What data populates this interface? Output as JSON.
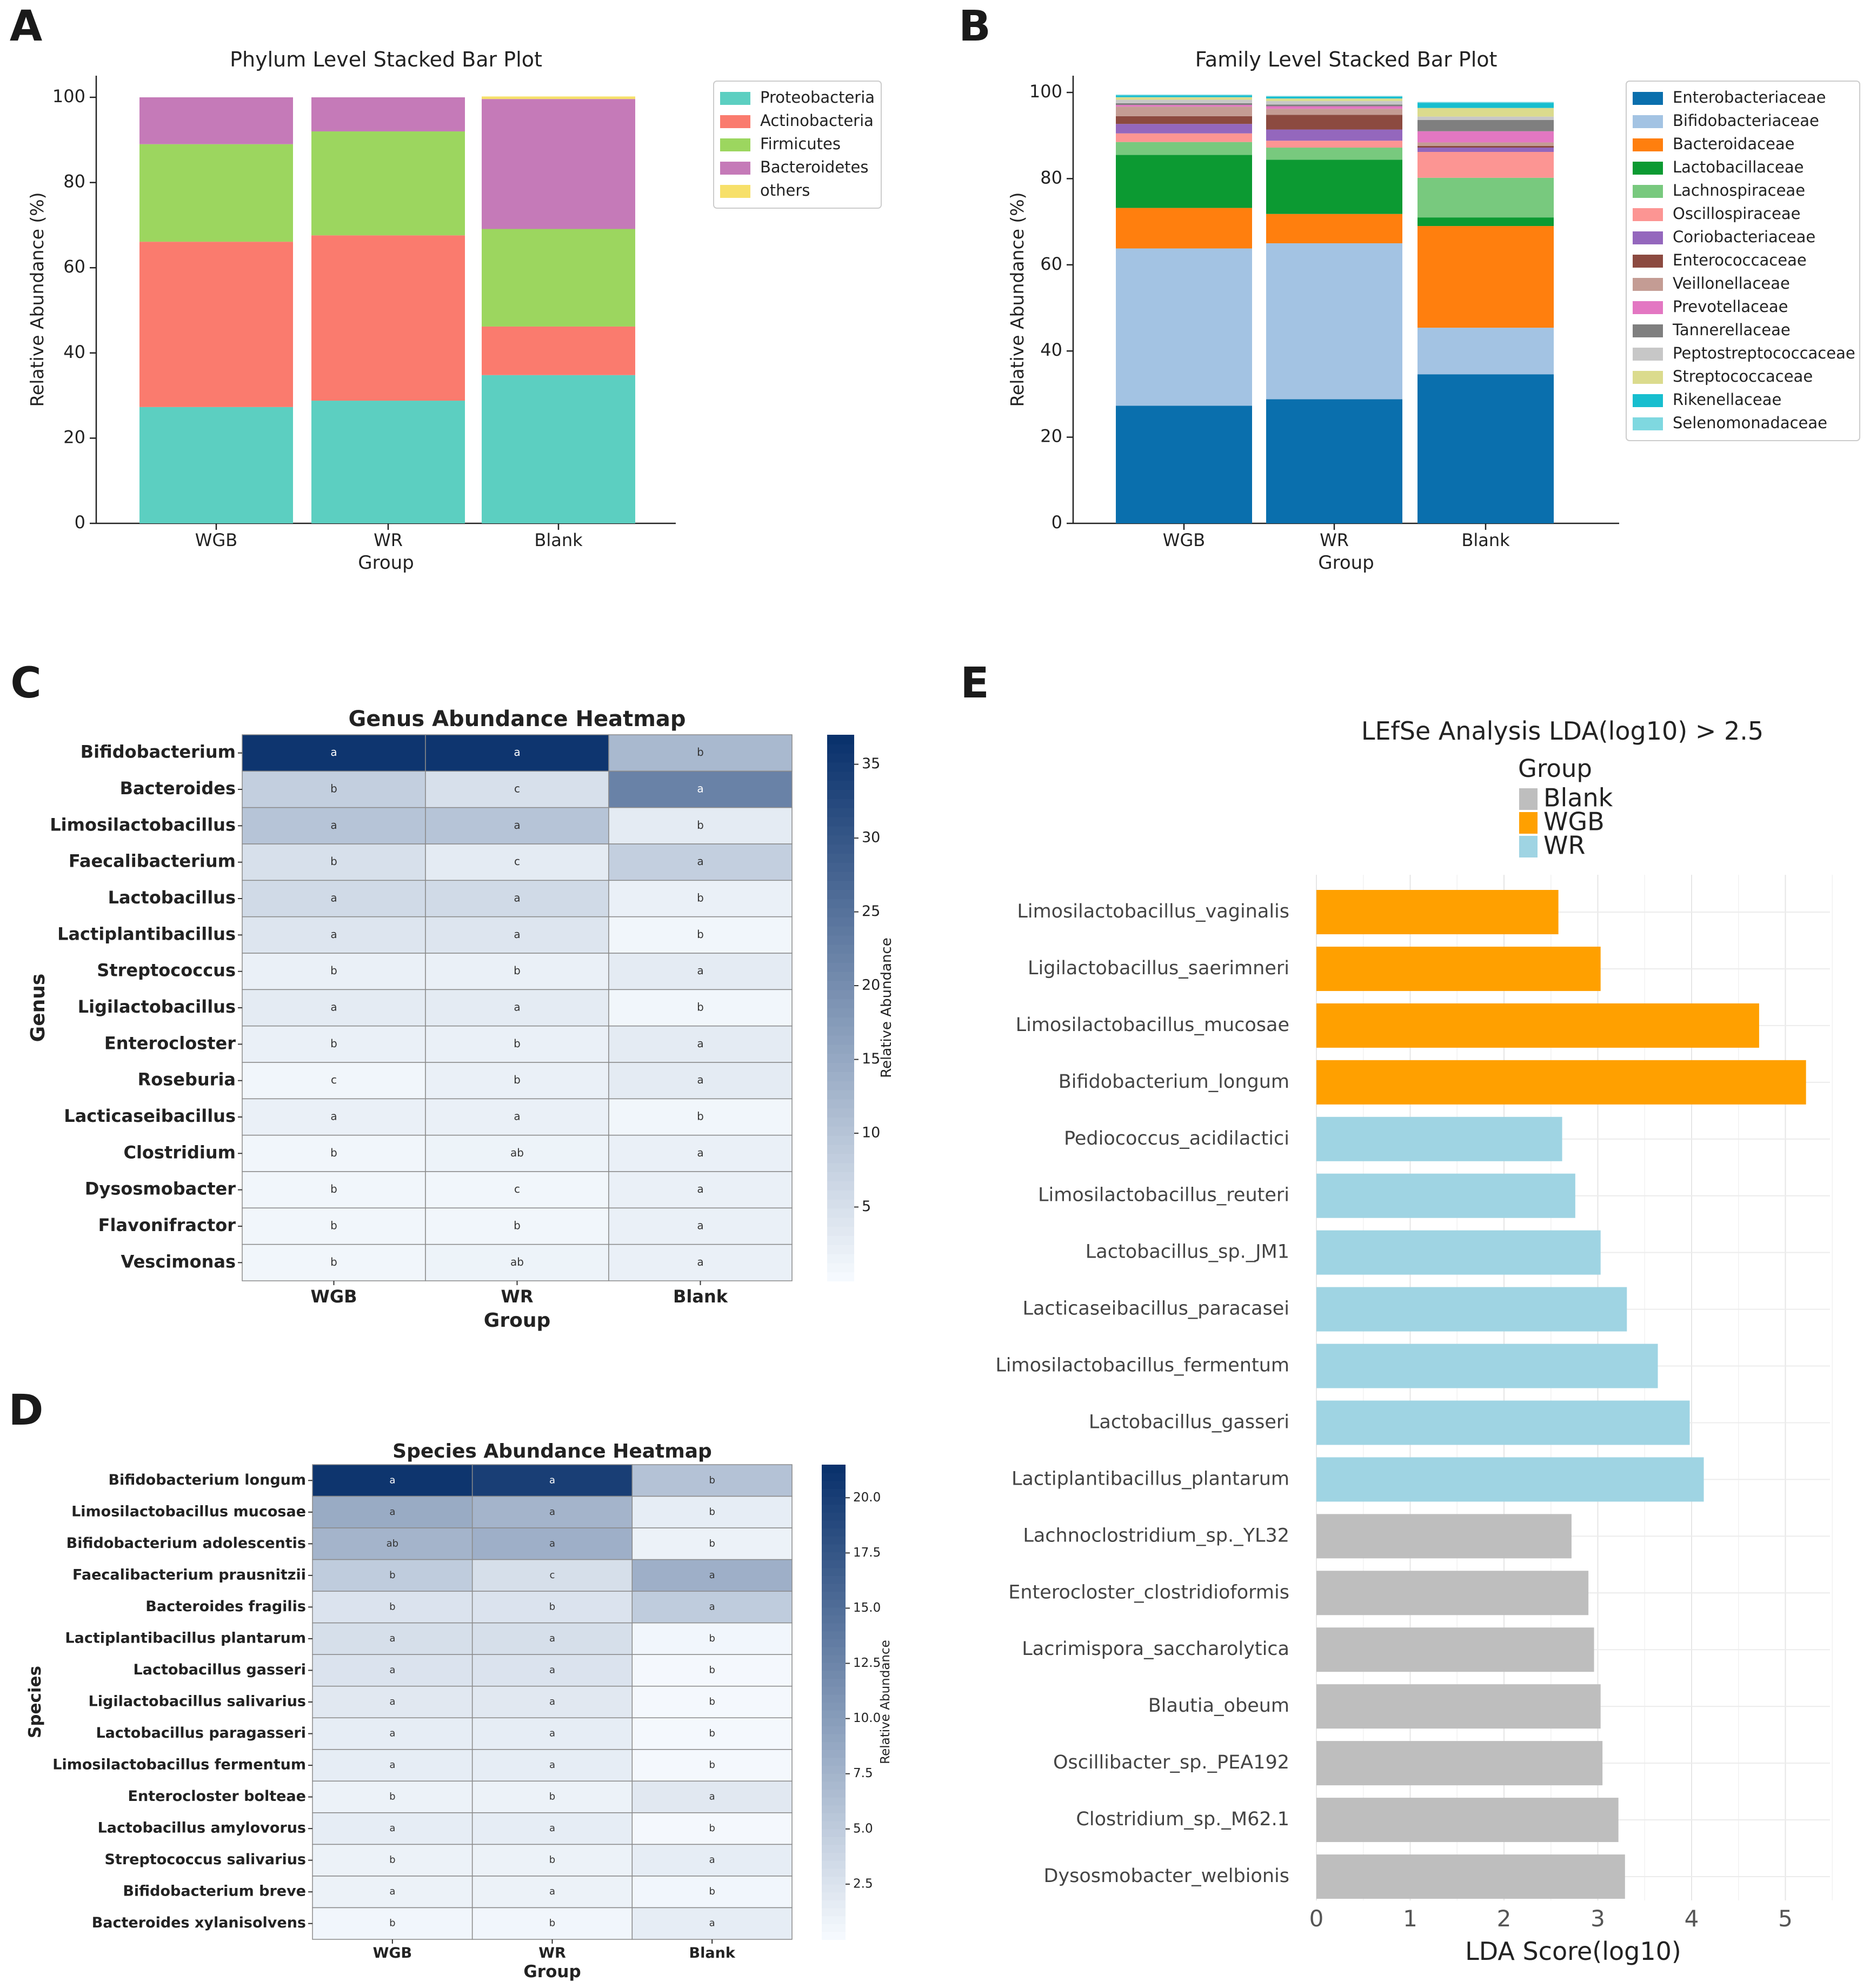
{
  "panel_labels": [
    "A",
    "B",
    "C",
    "E",
    "D"
  ],
  "chart_data": [
    {
      "panel": "A",
      "type": "bar",
      "stacked": true,
      "title": "Phylum Level Stacked Bar Plot",
      "xlabel": "Group",
      "ylabel": "Relative Abundance (%)",
      "ylim": [
        0,
        100
      ],
      "yticks": [
        0,
        20,
        40,
        60,
        80,
        100
      ],
      "categories": [
        "WGB",
        "WR",
        "Blank"
      ],
      "legend_position": "top-right",
      "series": [
        {
          "name": "Proteobacteria",
          "color": "#5ccfc1",
          "values": [
            27.3,
            28.8,
            34.8
          ]
        },
        {
          "name": "Actinobacteria",
          "color": "#fa7b6e",
          "values": [
            38.8,
            38.8,
            11.4
          ]
        },
        {
          "name": "Firmicutes",
          "color": "#9cd65f",
          "values": [
            22.9,
            24.4,
            22.9
          ]
        },
        {
          "name": "Bacteroidetes",
          "color": "#c57ab8",
          "values": [
            11.0,
            8.0,
            30.5
          ]
        },
        {
          "name": "others",
          "color": "#f7e06a",
          "values": [
            0.0,
            0.0,
            0.6
          ]
        }
      ]
    },
    {
      "panel": "B",
      "type": "bar",
      "stacked": true,
      "title": "Family Level Stacked Bar Plot",
      "xlabel": "Group",
      "ylabel": "Relative Abundance (%)",
      "ylim": [
        0,
        100
      ],
      "yticks": [
        0,
        20,
        40,
        60,
        80,
        100
      ],
      "categories": [
        "WGB",
        "WR",
        "Blank"
      ],
      "legend_position": "top-right",
      "series": [
        {
          "name": "Enterobacteriaceae",
          "color": "#0a6fad",
          "values": [
            27.3,
            28.8,
            34.6
          ]
        },
        {
          "name": "Bifidobacteriaceae",
          "color": "#a3c3e3",
          "values": [
            36.5,
            36.2,
            10.8
          ]
        },
        {
          "name": "Bacteroidaceae",
          "color": "#ff7f0e",
          "values": [
            9.4,
            6.8,
            23.6
          ]
        },
        {
          "name": "Lactobacillaceae",
          "color": "#0c9a32",
          "values": [
            12.3,
            12.6,
            2.0
          ]
        },
        {
          "name": "Lachnospiraceae",
          "color": "#78c97e",
          "values": [
            3.0,
            2.8,
            9.2
          ]
        },
        {
          "name": "Oscillospiraceae",
          "color": "#fc9593",
          "values": [
            2.0,
            1.6,
            6.0
          ]
        },
        {
          "name": "Coriobacteriaceae",
          "color": "#9467bd",
          "values": [
            2.2,
            2.6,
            1.0
          ]
        },
        {
          "name": "Enterococcaceae",
          "color": "#8c4a40",
          "values": [
            1.8,
            3.4,
            0.4
          ]
        },
        {
          "name": "Veillonellaceae",
          "color": "#c49c94",
          "values": [
            2.2,
            1.4,
            0.8
          ]
        },
        {
          "name": "Prevotellaceae",
          "color": "#e377c2",
          "values": [
            0.4,
            0.6,
            2.6
          ]
        },
        {
          "name": "Tannerellaceae",
          "color": "#7f7f7f",
          "values": [
            0.4,
            0.4,
            2.6
          ]
        },
        {
          "name": "Peptostreptococcaceae",
          "color": "#c7c7c7",
          "values": [
            0.8,
            0.8,
            0.8
          ]
        },
        {
          "name": "Streptococcaceae",
          "color": "#dbdb8d",
          "values": [
            0.6,
            0.6,
            2.0
          ]
        },
        {
          "name": "Rikenellaceae",
          "color": "#17becf",
          "values": [
            0.4,
            0.4,
            1.2
          ]
        },
        {
          "name": "Selenomonadaceae",
          "color": "#7fd8e0",
          "values": [
            0.2,
            0.2,
            0.2
          ]
        }
      ]
    },
    {
      "panel": "C",
      "type": "heatmap",
      "title": "Genus Abundance Heatmap",
      "xlabel": "Group",
      "ylabel": "Genus",
      "colorbar_label": "Relative Abundance",
      "colorbar_ticks": [
        5,
        10,
        15,
        20,
        25,
        30,
        35
      ],
      "vmin": 0,
      "vmax": 37,
      "columns": [
        "WGB",
        "WR",
        "Blank"
      ],
      "rows": [
        "Bifidobacterium",
        "Bacteroides",
        "Limosilactobacillus",
        "Faecalibacterium",
        "Lactobacillus",
        "Lactiplantibacillus",
        "Streptococcus",
        "Ligilactobacillus",
        "Enterocloster",
        "Roseburia",
        "Lacticaseibacillus",
        "Clostridium",
        "Dysosmobacter",
        "Flavonifractor",
        "Vescimonas"
      ],
      "values": [
        [
          36,
          36,
          12
        ],
        [
          8,
          5,
          22
        ],
        [
          10,
          10,
          3
        ],
        [
          5,
          3,
          8
        ],
        [
          6,
          6,
          2
        ],
        [
          4,
          4,
          1
        ],
        [
          2,
          2,
          3
        ],
        [
          3,
          3,
          1
        ],
        [
          2,
          2,
          3
        ],
        [
          1,
          2,
          3
        ],
        [
          2,
          2,
          1
        ],
        [
          1,
          1.5,
          2
        ],
        [
          1,
          1,
          2
        ],
        [
          1,
          1,
          2
        ],
        [
          1,
          1.5,
          2
        ]
      ],
      "letters": [
        [
          "a",
          "a",
          "b"
        ],
        [
          "b",
          "c",
          "a"
        ],
        [
          "a",
          "a",
          "b"
        ],
        [
          "b",
          "c",
          "a"
        ],
        [
          "a",
          "a",
          "b"
        ],
        [
          "a",
          "a",
          "b"
        ],
        [
          "b",
          "b",
          "a"
        ],
        [
          "a",
          "a",
          "b"
        ],
        [
          "b",
          "b",
          "a"
        ],
        [
          "c",
          "b",
          "a"
        ],
        [
          "a",
          "a",
          "b"
        ],
        [
          "b",
          "ab",
          "a"
        ],
        [
          "b",
          "c",
          "a"
        ],
        [
          "b",
          "b",
          "a"
        ],
        [
          "b",
          "ab",
          "a"
        ]
      ]
    },
    {
      "panel": "D",
      "type": "heatmap",
      "title": "Species Abundance Heatmap",
      "xlabel": "Group",
      "ylabel": "Species",
      "colorbar_label": "Relative Abundance",
      "colorbar_ticks": [
        "2.5",
        "5.0",
        "7.5",
        "10.0",
        "12.5",
        "15.0",
        "17.5",
        "20.0"
      ],
      "vmin": 0,
      "vmax": 21.5,
      "columns": [
        "WGB",
        "WR",
        "Blank"
      ],
      "rows": [
        "Bifidobacterium longum",
        "Limosilactobacillus mucosae",
        "Bifidobacterium adolescentis",
        "Faecalibacterium prausnitzii",
        "Bacteroides fragilis",
        "Lactiplantibacillus plantarum",
        "Lactobacillus gasseri",
        "Ligilactobacillus salivarius",
        "Lactobacillus paragasseri",
        "Limosilactobacillus fermentum",
        "Enterocloster bolteae",
        "Lactobacillus amylovorus",
        "Streptococcus salivarius",
        "Bifidobacterium breve",
        "Bacteroides xylanisolvens"
      ],
      "values": [
        [
          21,
          20,
          6
        ],
        [
          8.5,
          7.5,
          1.5
        ],
        [
          7.5,
          8,
          1
        ],
        [
          5,
          3,
          8
        ],
        [
          2.5,
          2.5,
          5
        ],
        [
          3,
          3,
          0.5
        ],
        [
          2.5,
          2.5,
          0.3
        ],
        [
          2,
          2,
          0.3
        ],
        [
          1.5,
          1.5,
          0.3
        ],
        [
          1.5,
          1.5,
          0.3
        ],
        [
          1,
          1,
          2
        ],
        [
          1.5,
          1.5,
          0.3
        ],
        [
          1,
          1,
          1.5
        ],
        [
          1,
          1,
          0.5
        ],
        [
          0.5,
          0.5,
          1.5
        ]
      ],
      "letters": [
        [
          "a",
          "a",
          "b"
        ],
        [
          "a",
          "a",
          "b"
        ],
        [
          "ab",
          "a",
          "b"
        ],
        [
          "b",
          "c",
          "a"
        ],
        [
          "b",
          "b",
          "a"
        ],
        [
          "a",
          "a",
          "b"
        ],
        [
          "a",
          "a",
          "b"
        ],
        [
          "a",
          "a",
          "b"
        ],
        [
          "a",
          "a",
          "b"
        ],
        [
          "a",
          "a",
          "b"
        ],
        [
          "b",
          "b",
          "a"
        ],
        [
          "a",
          "a",
          "b"
        ],
        [
          "b",
          "b",
          "a"
        ],
        [
          "a",
          "a",
          "b"
        ],
        [
          "b",
          "b",
          "a"
        ]
      ]
    },
    {
      "panel": "E",
      "type": "bar",
      "orientation": "horizontal",
      "title": "LEfSe Analysis LDA(log10) > 2.5",
      "xlabel": "LDA Score(log10)",
      "xlim": [
        0,
        5.5
      ],
      "xticks": [
        0,
        1,
        2,
        3,
        4,
        5
      ],
      "legend_title": "Group",
      "legend_position": "top",
      "groups": [
        {
          "name": "Blank",
          "color": "#bebebe"
        },
        {
          "name": "WGB",
          "color": "#ffa000"
        },
        {
          "name": "WR",
          "color": "#9fd4e3"
        }
      ],
      "features": [
        {
          "name": "Limosilactobacillus_vaginalis",
          "group": "WGB",
          "value": 2.58
        },
        {
          "name": "Ligilactobacillus_saerimneri",
          "group": "WGB",
          "value": 3.03
        },
        {
          "name": "Limosilactobacillus_mucosae",
          "group": "WGB",
          "value": 4.72
        },
        {
          "name": "Bifidobacterium_longum",
          "group": "WGB",
          "value": 5.22
        },
        {
          "name": "Pediococcus_acidilactici",
          "group": "WR",
          "value": 2.62
        },
        {
          "name": "Limosilactobacillus_reuteri",
          "group": "WR",
          "value": 2.76
        },
        {
          "name": "Lactobacillus_sp._JM1",
          "group": "WR",
          "value": 3.03
        },
        {
          "name": "Lacticaseibacillus_paracasei",
          "group": "WR",
          "value": 3.31
        },
        {
          "name": "Limosilactobacillus_fermentum",
          "group": "WR",
          "value": 3.64
        },
        {
          "name": "Lactobacillus_gasseri",
          "group": "WR",
          "value": 3.98
        },
        {
          "name": "Lactiplantibacillus_plantarum",
          "group": "WR",
          "value": 4.13
        },
        {
          "name": "Lachnoclostridium_sp._YL32",
          "group": "Blank",
          "value": 2.72
        },
        {
          "name": "Enterocloster_clostridioformis",
          "group": "Blank",
          "value": 2.9
        },
        {
          "name": "Lacrimispora_saccharolytica",
          "group": "Blank",
          "value": 2.96
        },
        {
          "name": "Blautia_obeum",
          "group": "Blank",
          "value": 3.03
        },
        {
          "name": "Oscillibacter_sp._PEA192",
          "group": "Blank",
          "value": 3.05
        },
        {
          "name": "Clostridium_sp._M62.1",
          "group": "Blank",
          "value": 3.22
        },
        {
          "name": "Dysosmobacter_welbionis",
          "group": "Blank",
          "value": 3.29
        }
      ]
    }
  ]
}
